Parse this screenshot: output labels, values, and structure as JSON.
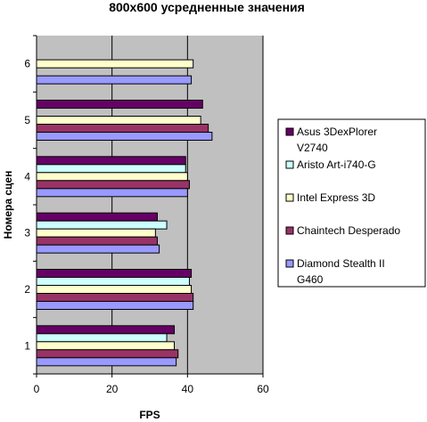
{
  "chart_data": {
    "type": "bar",
    "orientation": "horizontal",
    "title": "800x600 усредненные значения",
    "xlabel": "FPS",
    "ylabel": "Номера сцен",
    "xlim": [
      0,
      60
    ],
    "x_ticks": [
      "0",
      "20",
      "40",
      "60"
    ],
    "categories": [
      "1",
      "2",
      "3",
      "4",
      "5",
      "6"
    ],
    "grid": "vertical",
    "plot_background": "#c0c0c0",
    "legend_position": "right",
    "series": [
      {
        "name": "Asus 3DexPlorer V2740",
        "legend_lines": [
          "Asus 3DexPlorer",
          "V2740"
        ],
        "color": "#660066",
        "values": [
          36.5,
          41,
          32,
          39.5,
          44,
          null
        ]
      },
      {
        "name": "Aristo Art-i740-G",
        "legend_lines": [
          "Aristo Art-i740-G"
        ],
        "color": "#ccffff",
        "values": [
          34.5,
          40.5,
          34.5,
          39.5,
          null,
          null
        ]
      },
      {
        "name": "Intel Express 3D",
        "legend_lines": [
          "Intel Express 3D"
        ],
        "color": "#ffffcc",
        "values": [
          36.5,
          41,
          31.5,
          40,
          43.5,
          41.5
        ]
      },
      {
        "name": "Chaintech Desperado",
        "legend_lines": [
          "Chaintech Desperado"
        ],
        "color": "#993366",
        "values": [
          37.5,
          41.5,
          32,
          40.5,
          45.5,
          null
        ]
      },
      {
        "name": "Diamond Stealth II G460",
        "legend_lines": [
          "Diamond Stealth II",
          "G460"
        ],
        "color": "#9999ff",
        "values": [
          37,
          41.5,
          32.5,
          40,
          46.5,
          41
        ]
      }
    ]
  }
}
